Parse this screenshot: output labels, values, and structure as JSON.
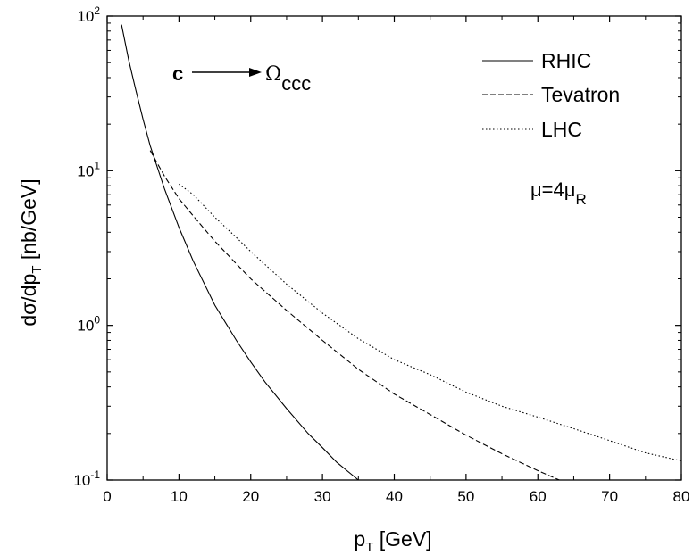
{
  "chart_data": {
    "type": "line",
    "xlabel": {
      "main": "p",
      "sub": "T",
      "unit": " [GeV]"
    },
    "ylabel": {
      "main": "dσ/dp",
      "sub": "T",
      "unit": " [nb/GeV]"
    },
    "xlim": [
      0,
      80
    ],
    "ylim": [
      0.1,
      100
    ],
    "yscale": "log",
    "grid": false,
    "x_ticks": [
      "0",
      "10",
      "20",
      "30",
      "40",
      "50",
      "60",
      "70",
      "80"
    ],
    "x_tick_values": [
      0,
      10,
      20,
      30,
      40,
      50,
      60,
      70,
      80
    ],
    "y_ticks": [
      {
        "value": 100,
        "base": "10",
        "exp": "2"
      },
      {
        "value": 10,
        "base": "10",
        "exp": "1"
      },
      {
        "value": 1,
        "base": "10",
        "exp": "0"
      },
      {
        "value": 0.1,
        "base": "10",
        "exp": "-1"
      }
    ],
    "legend_position": "top-right",
    "series": [
      {
        "name": "RHIC",
        "style": "solid",
        "points": [
          [
            2,
            88
          ],
          [
            3,
            52
          ],
          [
            4,
            33
          ],
          [
            5,
            21.5
          ],
          [
            6,
            14.5
          ],
          [
            8,
            7.6
          ],
          [
            10,
            4.3
          ],
          [
            12,
            2.6
          ],
          [
            15,
            1.35
          ],
          [
            18,
            0.8
          ],
          [
            20,
            0.58
          ],
          [
            22,
            0.43
          ],
          [
            25,
            0.29
          ],
          [
            28,
            0.2
          ],
          [
            30,
            0.162
          ],
          [
            32,
            0.13
          ],
          [
            35,
            0.1
          ]
        ]
      },
      {
        "name": "Tevatron",
        "style": "dashed",
        "points": [
          [
            6,
            13.5
          ],
          [
            8,
            9.2
          ],
          [
            10,
            6.6
          ],
          [
            12,
            5.1
          ],
          [
            15,
            3.5
          ],
          [
            18,
            2.5
          ],
          [
            20,
            2.0
          ],
          [
            25,
            1.25
          ],
          [
            30,
            0.8
          ],
          [
            35,
            0.52
          ],
          [
            40,
            0.36
          ],
          [
            45,
            0.265
          ],
          [
            50,
            0.195
          ],
          [
            55,
            0.148
          ],
          [
            60,
            0.115
          ],
          [
            63,
            0.1
          ]
        ]
      },
      {
        "name": "LHC",
        "style": "dotted",
        "points": [
          [
            10,
            8.2
          ],
          [
            12,
            7.0
          ],
          [
            15,
            5.0
          ],
          [
            18,
            3.7
          ],
          [
            20,
            3.0
          ],
          [
            25,
            1.85
          ],
          [
            30,
            1.2
          ],
          [
            35,
            0.82
          ],
          [
            40,
            0.6
          ],
          [
            45,
            0.48
          ],
          [
            50,
            0.37
          ],
          [
            55,
            0.3
          ],
          [
            60,
            0.255
          ],
          [
            65,
            0.215
          ],
          [
            70,
            0.18
          ],
          [
            75,
            0.15
          ],
          [
            80,
            0.133
          ]
        ]
      }
    ],
    "annotations": {
      "process_from": "c",
      "process_to": "Ω",
      "process_to_sub": "ccc",
      "mu_main": "μ=4μ",
      "mu_sub": "R"
    }
  }
}
